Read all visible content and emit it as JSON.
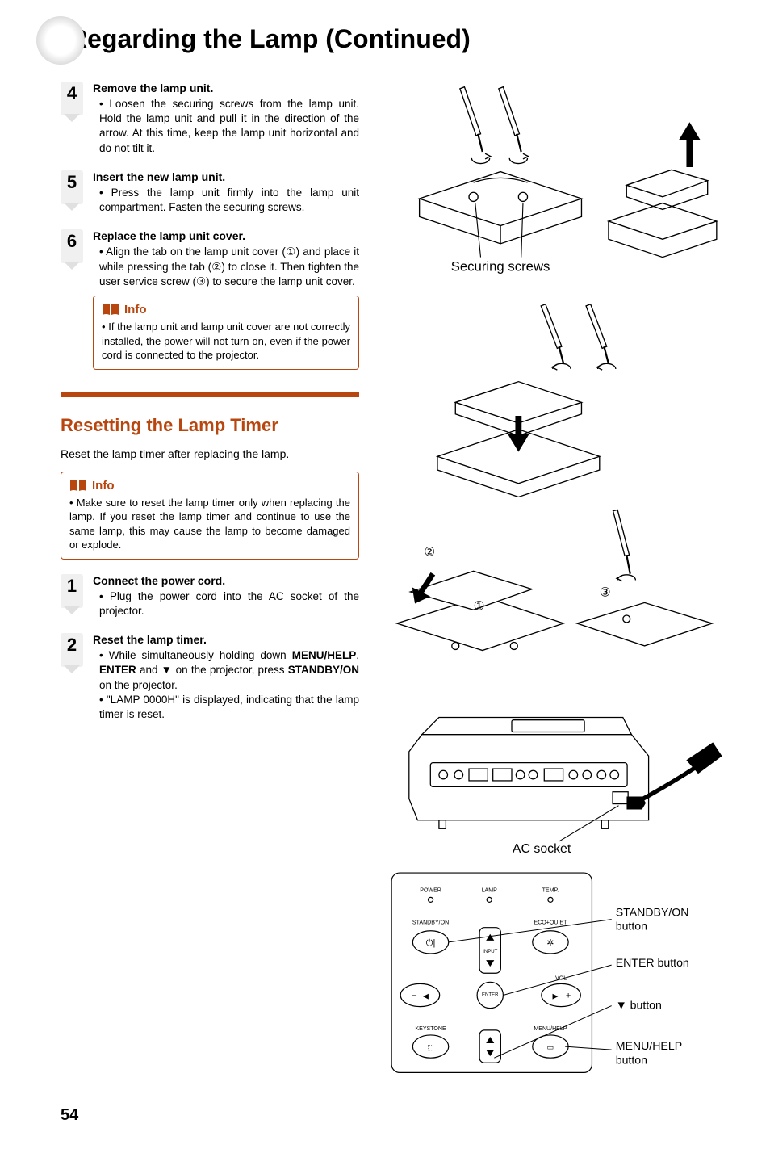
{
  "page_title": "Regarding the Lamp (Continued)",
  "page_number": "54",
  "steps_a": [
    {
      "num": "4",
      "title": "Remove the lamp unit.",
      "body": "Loosen the securing screws from the lamp unit. Hold the lamp unit and pull it in the direction of the arrow. At this time, keep the lamp unit horizontal and do not tilt it."
    },
    {
      "num": "5",
      "title": "Insert the new lamp unit.",
      "body": "Press the lamp unit firmly into the lamp unit compartment. Fasten the securing screws."
    },
    {
      "num": "6",
      "title": "Replace the lamp unit cover.",
      "body": "Align the tab on the lamp unit cover (①) and place it while pressing the tab (②) to close it. Then tighten the user service screw (③) to secure the lamp unit cover."
    }
  ],
  "info1": {
    "label": "Info",
    "body": "If the lamp unit and lamp unit cover are not correctly installed, the power will not turn on, even if the power cord is connected to the projector."
  },
  "section2": {
    "heading": "Resetting the Lamp Timer",
    "intro": "Reset the lamp timer after replacing the lamp."
  },
  "info2": {
    "label": "Info",
    "body": "Make sure to reset the lamp timer only when replacing the lamp. If you reset the lamp timer and continue to use the same lamp, this may cause the lamp to become damaged or explode."
  },
  "steps_b": [
    {
      "num": "1",
      "title": "Connect the power cord.",
      "body": "Plug the power cord into the AC socket of the projector."
    },
    {
      "num": "2",
      "title": "Reset the lamp timer.",
      "body_items": [
        "While simultaneously holding down <b>MENU/HELP</b>, <b>ENTER</b> and ▼ on the projector, press <b>STANDBY/ON</b> on the projector.",
        "\"LAMP 0000H\" is displayed, indicating that the lamp timer is reset."
      ]
    }
  ],
  "figure_labels": {
    "securing_screws": "Securing screws",
    "ac_socket": "AC socket",
    "standby": "STANDBY/ON button",
    "enter": "ENTER button",
    "down": "▼ button",
    "menu": "MENU/HELP button",
    "circled1": "①",
    "circled2": "②",
    "circled3": "③"
  },
  "panel_labels": {
    "power": "POWER",
    "lamp": "LAMP",
    "temp": "TEMP.",
    "standby_on": "STANDBY/ON",
    "eco": "ECO+QUIET",
    "input": "INPUT",
    "vol": "VOL",
    "enter": "ENTER",
    "keystone": "KEYSTONE",
    "menu_help": "MENU/HELP"
  },
  "colors": {
    "accent": "#b8470f",
    "step_bg": "#f0f0f0"
  }
}
